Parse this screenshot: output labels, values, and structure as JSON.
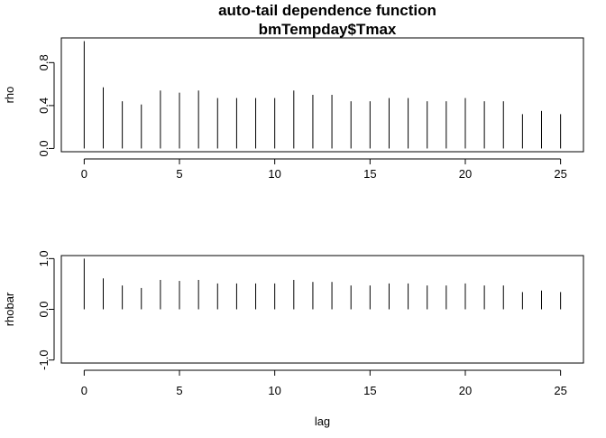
{
  "chart_data": [
    {
      "type": "bar",
      "title": "auto-tail dependence function",
      "subtitle": "bmTempday$Tmax",
      "xlabel": "",
      "ylabel": "rho",
      "xlim": [
        -1.2,
        26.2
      ],
      "ylim": [
        -0.03,
        1.03
      ],
      "x_ticks": [
        "0",
        "5",
        "10",
        "15",
        "20",
        "25"
      ],
      "y_ticks": [
        "0.0",
        "0.4",
        "0.8"
      ],
      "x": [
        0,
        1,
        2,
        3,
        4,
        5,
        6,
        7,
        8,
        9,
        10,
        11,
        12,
        13,
        14,
        15,
        16,
        17,
        18,
        19,
        20,
        21,
        22,
        23,
        24,
        25
      ],
      "values": [
        1.0,
        0.57,
        0.44,
        0.41,
        0.54,
        0.52,
        0.54,
        0.47,
        0.47,
        0.47,
        0.47,
        0.54,
        0.5,
        0.5,
        0.44,
        0.44,
        0.47,
        0.47,
        0.44,
        0.44,
        0.47,
        0.44,
        0.44,
        0.32,
        0.35,
        0.32
      ],
      "grid": false
    },
    {
      "type": "bar",
      "title": "",
      "xlabel": "lag",
      "ylabel": "rhobar",
      "xlim": [
        -1.2,
        26.2
      ],
      "ylim": [
        -1.06,
        1.06
      ],
      "x_ticks": [
        "0",
        "5",
        "10",
        "15",
        "20",
        "25"
      ],
      "y_ticks": [
        "-1.0",
        "0.0",
        "1.0"
      ],
      "x": [
        0,
        1,
        2,
        3,
        4,
        5,
        6,
        7,
        8,
        9,
        10,
        11,
        12,
        13,
        14,
        15,
        16,
        17,
        18,
        19,
        20,
        21,
        22,
        23,
        24,
        25
      ],
      "values": [
        1.0,
        0.61,
        0.47,
        0.42,
        0.58,
        0.56,
        0.58,
        0.51,
        0.51,
        0.51,
        0.51,
        0.58,
        0.54,
        0.54,
        0.47,
        0.47,
        0.51,
        0.51,
        0.47,
        0.47,
        0.51,
        0.47,
        0.47,
        0.34,
        0.37,
        0.34
      ],
      "grid": false
    }
  ]
}
